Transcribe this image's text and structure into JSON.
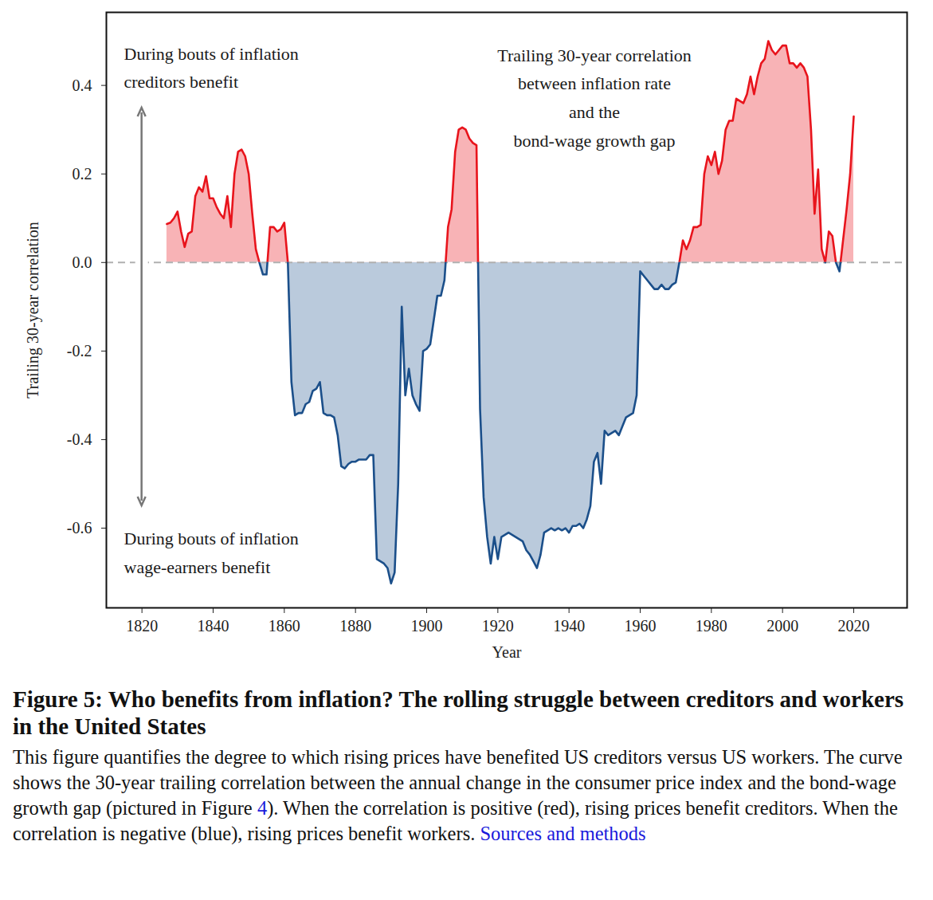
{
  "chart_data": {
    "type": "area",
    "title": "Figure 5: Who benefits from inflation? The rolling struggle between creditors and workers in the United States",
    "caption": [
      "This figure quantifies the degree to which rising prices have benefited US creditors versus US workers. The curve shows the 30-year trailing correlation between the annual change in the consumer price index and the bond-wage growth gap (pictured in Figure ",
      "4",
      "). When the correlation is positive (red), rising prices benefit creditors. When the correlation is negative (blue), rising prices benefit workers. ",
      "Sources and methods"
    ],
    "annotations": [
      "During bouts of inflation\ncreditors benefit",
      "During bouts of inflation\nwage-earners benefit",
      "Trailing 30-year correlation\nbetween inflation rate\nand the\nbond-wage growth gap"
    ],
    "x_label": "Year",
    "y_label": "Trailing 30-year correlation",
    "x": [
      1827,
      1828,
      1829,
      1830,
      1831,
      1832,
      1833,
      1834,
      1835,
      1836,
      1837,
      1838,
      1839,
      1840,
      1841,
      1842,
      1843,
      1844,
      1845,
      1846,
      1847,
      1848,
      1849,
      1850,
      1851,
      1852,
      1853,
      1854,
      1855,
      1856,
      1857,
      1858,
      1859,
      1860,
      1861,
      1862,
      1863,
      1864,
      1865,
      1866,
      1867,
      1868,
      1869,
      1870,
      1871,
      1872,
      1873,
      1874,
      1875,
      1876,
      1877,
      1878,
      1879,
      1880,
      1881,
      1882,
      1883,
      1884,
      1885,
      1886,
      1887,
      1888,
      1889,
      1890,
      1891,
      1892,
      1893,
      1894,
      1895,
      1896,
      1897,
      1898,
      1899,
      1900,
      1901,
      1902,
      1903,
      1904,
      1905,
      1906,
      1907,
      1908,
      1909,
      1910,
      1911,
      1912,
      1913,
      1914,
      1915,
      1916,
      1917,
      1918,
      1919,
      1920,
      1921,
      1922,
      1923,
      1924,
      1925,
      1926,
      1927,
      1928,
      1929,
      1930,
      1931,
      1932,
      1933,
      1934,
      1935,
      1936,
      1937,
      1938,
      1939,
      1940,
      1941,
      1942,
      1943,
      1944,
      1945,
      1946,
      1947,
      1948,
      1949,
      1950,
      1951,
      1952,
      1953,
      1954,
      1955,
      1956,
      1957,
      1958,
      1959,
      1960,
      1961,
      1962,
      1963,
      1964,
      1965,
      1966,
      1967,
      1968,
      1969,
      1970,
      1971,
      1972,
      1973,
      1974,
      1975,
      1976,
      1977,
      1978,
      1979,
      1980,
      1981,
      1982,
      1983,
      1984,
      1985,
      1986,
      1987,
      1988,
      1989,
      1990,
      1991,
      1992,
      1993,
      1994,
      1995,
      1996,
      1997,
      1998,
      1999,
      2000,
      2001,
      2002,
      2003,
      2004,
      2005,
      2006,
      2007,
      2008,
      2009,
      2010,
      2011,
      2012,
      2013,
      2014,
      2015,
      2016,
      2017,
      2018,
      2019,
      2020
    ],
    "values": [
      0.087,
      0.09,
      0.1,
      0.115,
      0.07,
      0.035,
      0.065,
      0.07,
      0.15,
      0.17,
      0.16,
      0.195,
      0.145,
      0.145,
      0.125,
      0.11,
      0.1,
      0.15,
      0.08,
      0.2,
      0.25,
      0.255,
      0.24,
      0.2,
      0.11,
      0.03,
      0.0,
      -0.027,
      -0.027,
      0.08,
      0.08,
      0.07,
      0.075,
      0.09,
      0.0,
      -0.27,
      -0.345,
      -0.34,
      -0.34,
      -0.32,
      -0.315,
      -0.29,
      -0.285,
      -0.27,
      -0.34,
      -0.345,
      -0.345,
      -0.35,
      -0.39,
      -0.46,
      -0.465,
      -0.455,
      -0.45,
      -0.45,
      -0.445,
      -0.445,
      -0.445,
      -0.435,
      -0.435,
      -0.67,
      -0.675,
      -0.68,
      -0.69,
      -0.725,
      -0.7,
      -0.5,
      -0.1,
      -0.3,
      -0.24,
      -0.3,
      -0.32,
      -0.335,
      -0.2,
      -0.195,
      -0.185,
      -0.13,
      -0.075,
      -0.075,
      -0.04,
      0.08,
      0.12,
      0.25,
      0.3,
      0.305,
      0.3,
      0.28,
      0.27,
      0.265,
      -0.33,
      -0.53,
      -0.62,
      -0.68,
      -0.62,
      -0.67,
      -0.62,
      -0.615,
      -0.61,
      -0.615,
      -0.62,
      -0.625,
      -0.63,
      -0.65,
      -0.66,
      -0.675,
      -0.69,
      -0.66,
      -0.61,
      -0.605,
      -0.6,
      -0.605,
      -0.6,
      -0.605,
      -0.6,
      -0.61,
      -0.595,
      -0.595,
      -0.59,
      -0.6,
      -0.58,
      -0.55,
      -0.45,
      -0.43,
      -0.5,
      -0.38,
      -0.39,
      -0.385,
      -0.38,
      -0.39,
      -0.37,
      -0.35,
      -0.345,
      -0.34,
      -0.3,
      -0.02,
      -0.03,
      -0.04,
      -0.05,
      -0.06,
      -0.06,
      -0.05,
      -0.06,
      -0.06,
      -0.05,
      -0.045,
      0.0,
      0.05,
      0.03,
      0.05,
      0.08,
      0.08,
      0.085,
      0.2,
      0.24,
      0.22,
      0.25,
      0.2,
      0.23,
      0.3,
      0.32,
      0.32,
      0.37,
      0.365,
      0.36,
      0.38,
      0.42,
      0.38,
      0.42,
      0.45,
      0.46,
      0.5,
      0.48,
      0.47,
      0.48,
      0.49,
      0.49,
      0.45,
      0.45,
      0.44,
      0.45,
      0.44,
      0.42,
      0.3,
      0.11,
      0.21,
      0.03,
      0.0,
      0.07,
      0.06,
      0.0,
      -0.02,
      0.05,
      0.12,
      0.2,
      0.33
    ],
    "colors": [
      "#e8141c",
      "#1b4f8a"
    ],
    "xlim": [
      1810,
      2035
    ],
    "ylim": [
      -0.78,
      0.565
    ],
    "xticks": [
      1820,
      1840,
      1860,
      1880,
      1900,
      1920,
      1940,
      1960,
      1980,
      2000,
      2020
    ],
    "yticks": [
      -0.6,
      -0.4,
      -0.2,
      {
        "value": 0,
        "label": "0.0"
      },
      0.2,
      0.4
    ],
    "grid": false
  }
}
